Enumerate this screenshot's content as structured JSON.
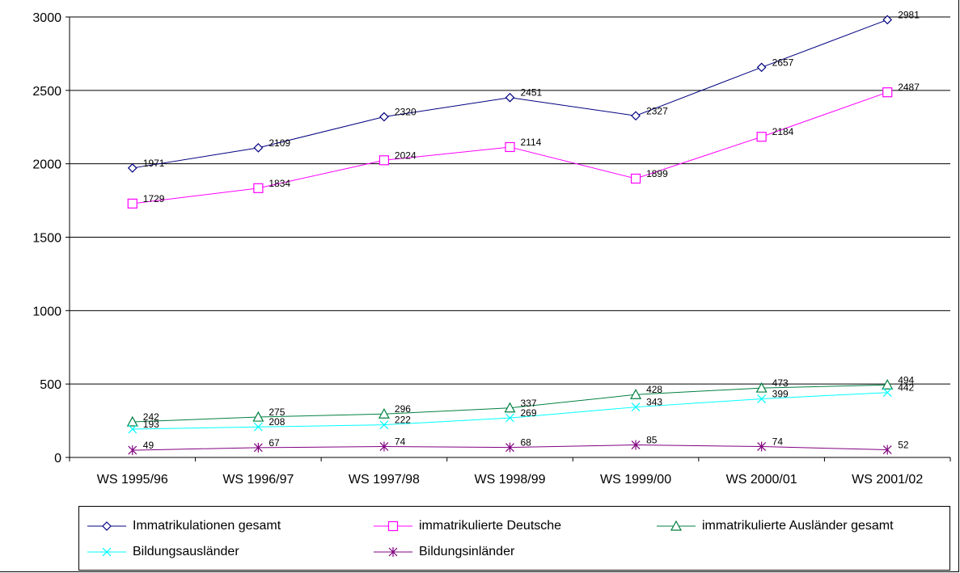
{
  "chart_data": {
    "type": "line",
    "categories": [
      "WS 1995/96",
      "WS 1996/97",
      "WS 1997/98",
      "WS 1998/99",
      "WS 1999/00",
      "WS 2000/01",
      "WS 2001/02"
    ],
    "ylim": [
      0,
      3000
    ],
    "yticks": [
      0,
      500,
      1000,
      1500,
      2000,
      2500,
      3000
    ],
    "grid": true,
    "legend_position": "bottom",
    "series": [
      {
        "name": "Immatrikulationen gesamt",
        "values": [
          1971,
          2109,
          2320,
          2451,
          2327,
          2657,
          2981
        ],
        "color": "#000080",
        "marker": "diamond"
      },
      {
        "name": "immatrikulierte Deutsche",
        "values": [
          1729,
          1834,
          2024,
          2114,
          1899,
          2184,
          2487
        ],
        "color": "#FF00FF",
        "marker": "square"
      },
      {
        "name": "immatrikulierte Ausländer gesamt",
        "values": [
          242,
          275,
          296,
          337,
          428,
          473,
          494
        ],
        "color": "#008040",
        "marker": "triangle"
      },
      {
        "name": "Bildungsausländer",
        "values": [
          193,
          208,
          222,
          269,
          343,
          399,
          442
        ],
        "color": "#00FFFF",
        "marker": "x"
      },
      {
        "name": "Bildungsinländer",
        "values": [
          49,
          67,
          74,
          68,
          85,
          74,
          52
        ],
        "color": "#800080",
        "marker": "star"
      }
    ]
  }
}
